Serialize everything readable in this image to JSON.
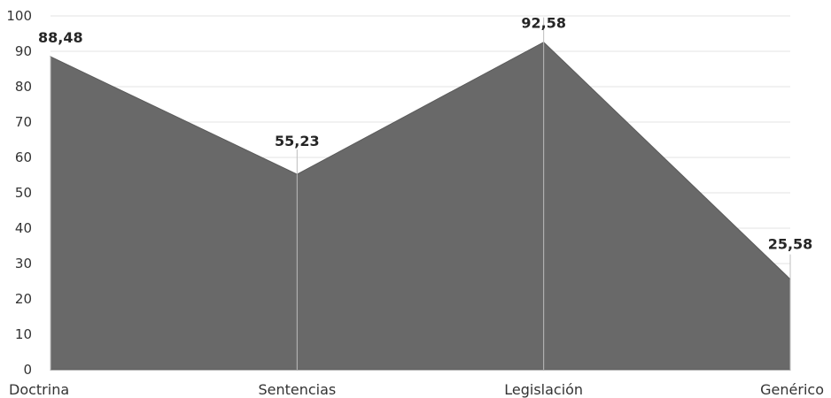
{
  "chart_data": {
    "type": "area",
    "categories": [
      "Doctrina",
      "Sentencias",
      "Legislación",
      "Genérico"
    ],
    "values": [
      88.48,
      55.23,
      92.58,
      25.58
    ],
    "data_labels": [
      "88,48",
      "55,23",
      "92,58",
      "25,58"
    ],
    "y_ticks": [
      "0",
      "10",
      "20",
      "30",
      "40",
      "50",
      "60",
      "70",
      "80",
      "90",
      "100"
    ],
    "ylim": [
      0,
      100
    ],
    "y_step": 10,
    "grid": true,
    "legend": "none",
    "title": "",
    "xlabel": "",
    "ylabel": "",
    "colors": {
      "area": "#696969",
      "area_edge": "#5a5a5a",
      "gridline": "#e3e3e3",
      "text": "#333333"
    }
  }
}
